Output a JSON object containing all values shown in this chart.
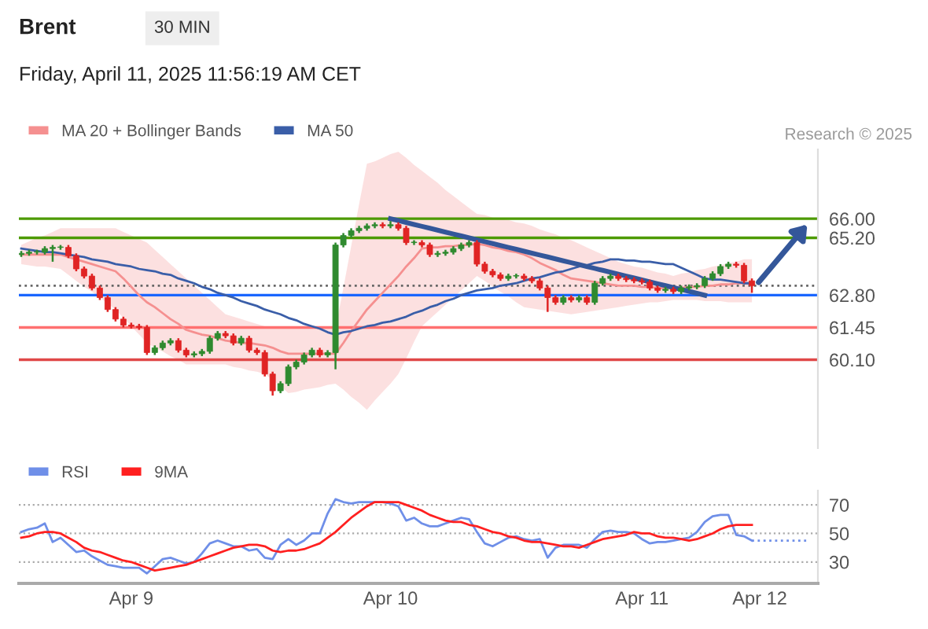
{
  "chart_data": [
    {
      "type": "candlestick",
      "title": "Brent",
      "subtitle": "Friday, April 11, 2025 11:56:19 AM CET",
      "annotations": [
        "30 MIN",
        "Research © 2025"
      ],
      "categories": [
        null,
        null,
        null,
        null,
        null,
        null,
        null,
        null,
        null,
        null,
        null,
        null,
        null,
        null,
        null,
        null,
        null,
        null,
        null,
        null,
        null,
        null,
        null,
        null,
        null,
        null,
        null,
        null,
        null,
        null,
        null,
        null,
        null,
        null,
        null,
        null,
        null,
        null,
        null,
        null,
        null,
        null,
        null,
        null,
        null,
        null,
        null,
        null,
        null,
        null,
        null,
        null,
        null,
        null,
        null,
        null,
        null,
        null,
        null,
        null,
        null,
        null,
        null,
        null,
        null,
        null,
        null,
        null,
        null,
        null,
        null,
        null,
        null,
        null,
        null,
        null,
        null,
        null,
        null,
        null,
        null,
        null,
        null,
        null,
        null,
        null,
        null,
        null,
        null,
        null,
        null,
        null,
        null,
        null,
        null,
        null,
        null,
        null,
        null,
        null,
        null
      ],
      "ohlc": [
        [
          64.5,
          64.65,
          64.4,
          64.55
        ],
        [
          64.55,
          64.7,
          64.45,
          64.6
        ],
        [
          64.6,
          64.7,
          64.5,
          64.6
        ],
        [
          64.6,
          64.85,
          64.5,
          64.75
        ],
        [
          64.75,
          64.9,
          64.2,
          64.8
        ],
        [
          64.8,
          64.9,
          64.7,
          64.8
        ],
        [
          64.8,
          64.9,
          64.35,
          64.45
        ],
        [
          64.45,
          64.55,
          63.8,
          63.9
        ],
        [
          63.9,
          64.0,
          63.5,
          63.6
        ],
        [
          63.6,
          63.7,
          63.0,
          63.1
        ],
        [
          63.1,
          63.2,
          62.6,
          62.7
        ],
        [
          62.7,
          62.8,
          62.1,
          62.2
        ],
        [
          62.2,
          62.3,
          61.7,
          61.8
        ],
        [
          61.8,
          61.9,
          61.45,
          61.55
        ],
        [
          61.55,
          61.65,
          61.4,
          61.5
        ],
        [
          61.5,
          61.6,
          61.35,
          61.45
        ],
        [
          61.45,
          61.55,
          60.3,
          60.4
        ],
        [
          60.4,
          60.7,
          60.3,
          60.6
        ],
        [
          60.6,
          60.9,
          60.5,
          60.8
        ],
        [
          60.8,
          61.0,
          60.7,
          60.9
        ],
        [
          60.9,
          61.0,
          60.4,
          60.5
        ],
        [
          60.5,
          60.6,
          60.2,
          60.3
        ],
        [
          60.3,
          60.45,
          60.2,
          60.35
        ],
        [
          60.35,
          60.55,
          60.25,
          60.45
        ],
        [
          60.45,
          61.1,
          60.35,
          61.0
        ],
        [
          61.0,
          61.3,
          60.9,
          61.2
        ],
        [
          61.2,
          61.3,
          61.0,
          61.1
        ],
        [
          61.1,
          61.2,
          60.7,
          60.8
        ],
        [
          60.8,
          61.1,
          60.7,
          61.0
        ],
        [
          61.0,
          61.1,
          60.4,
          60.5
        ],
        [
          60.5,
          60.6,
          60.3,
          60.4
        ],
        [
          60.4,
          60.5,
          59.4,
          59.5
        ],
        [
          59.5,
          59.6,
          58.6,
          58.8
        ],
        [
          58.8,
          59.2,
          58.7,
          59.1
        ],
        [
          59.1,
          59.9,
          59.0,
          59.8
        ],
        [
          59.8,
          60.1,
          59.7,
          60.0
        ],
        [
          60.0,
          60.4,
          59.9,
          60.3
        ],
        [
          60.3,
          60.6,
          60.2,
          60.5
        ],
        [
          60.5,
          60.6,
          60.2,
          60.3
        ],
        [
          60.3,
          60.5,
          60.2,
          60.4
        ],
        [
          60.4,
          65.0,
          59.7,
          64.9
        ],
        [
          64.9,
          65.4,
          64.8,
          65.3
        ],
        [
          65.3,
          65.6,
          65.2,
          65.5
        ],
        [
          65.5,
          65.7,
          65.4,
          65.6
        ],
        [
          65.6,
          65.8,
          65.5,
          65.7
        ],
        [
          65.7,
          65.85,
          65.6,
          65.75
        ],
        [
          65.75,
          65.85,
          65.6,
          65.7
        ],
        [
          65.7,
          65.9,
          65.6,
          65.75
        ],
        [
          65.75,
          65.85,
          65.5,
          65.6
        ],
        [
          65.6,
          65.7,
          64.9,
          65.0
        ],
        [
          65.0,
          65.1,
          64.9,
          65.0
        ],
        [
          65.0,
          65.1,
          64.8,
          64.9
        ],
        [
          64.9,
          65.0,
          64.4,
          64.5
        ],
        [
          64.5,
          64.65,
          64.4,
          64.55
        ],
        [
          64.55,
          64.7,
          64.45,
          64.6
        ],
        [
          64.6,
          64.85,
          64.5,
          64.75
        ],
        [
          64.75,
          65.0,
          64.65,
          64.9
        ],
        [
          64.9,
          65.1,
          64.8,
          65.0
        ],
        [
          65.0,
          65.1,
          64.0,
          64.1
        ],
        [
          64.1,
          64.2,
          63.7,
          63.8
        ],
        [
          63.8,
          63.9,
          63.55,
          63.65
        ],
        [
          63.65,
          63.75,
          63.4,
          63.5
        ],
        [
          63.5,
          63.7,
          63.4,
          63.6
        ],
        [
          63.6,
          63.7,
          63.5,
          63.6
        ],
        [
          63.6,
          63.7,
          63.4,
          63.5
        ],
        [
          63.5,
          63.6,
          63.3,
          63.4
        ],
        [
          63.4,
          63.5,
          63.0,
          63.1
        ],
        [
          63.1,
          63.2,
          62.1,
          62.7
        ],
        [
          62.7,
          62.8,
          62.4,
          62.5
        ],
        [
          62.5,
          62.8,
          62.4,
          62.7
        ],
        [
          62.7,
          62.8,
          62.5,
          62.6
        ],
        [
          62.6,
          62.8,
          62.5,
          62.7
        ],
        [
          62.7,
          62.8,
          62.4,
          62.5
        ],
        [
          62.5,
          63.4,
          62.4,
          63.3
        ],
        [
          63.3,
          63.6,
          63.2,
          63.5
        ],
        [
          63.5,
          63.7,
          63.4,
          63.6
        ],
        [
          63.6,
          63.7,
          63.4,
          63.5
        ],
        [
          63.5,
          63.6,
          63.35,
          63.45
        ],
        [
          63.45,
          63.55,
          63.3,
          63.4
        ],
        [
          63.4,
          63.5,
          63.25,
          63.35
        ],
        [
          63.35,
          63.45,
          63.0,
          63.1
        ],
        [
          63.1,
          63.2,
          62.9,
          63.0
        ],
        [
          63.0,
          63.15,
          62.9,
          63.05
        ],
        [
          63.05,
          63.15,
          62.85,
          62.95
        ],
        [
          62.95,
          63.2,
          62.85,
          63.1
        ],
        [
          63.1,
          63.25,
          63.0,
          63.15
        ],
        [
          63.15,
          63.3,
          63.05,
          63.2
        ],
        [
          63.2,
          63.6,
          63.1,
          63.5
        ],
        [
          63.5,
          63.8,
          63.4,
          63.7
        ],
        [
          63.7,
          64.1,
          63.6,
          64.0
        ],
        [
          64.0,
          64.2,
          63.9,
          64.1
        ],
        [
          64.1,
          64.2,
          63.95,
          64.05
        ],
        [
          64.05,
          64.15,
          63.3,
          63.4
        ],
        [
          63.4,
          63.5,
          62.9,
          63.2
        ],
        null,
        null,
        null,
        null,
        null,
        null,
        null
      ],
      "colors": [
        "#2f8a2f",
        "#2f8a2f",
        "#2f8a2f",
        "#2f8a2f",
        "#2f8a2f",
        "#2f8a2f",
        "#e02424",
        "#e02424",
        "#e02424",
        "#e02424",
        "#e02424",
        "#e02424",
        "#e02424",
        "#e02424",
        "#e02424",
        "#e02424",
        "#e02424",
        "#2f8a2f",
        "#2f8a2f",
        "#2f8a2f",
        "#e02424",
        "#e02424",
        "#2f8a2f",
        "#2f8a2f",
        "#2f8a2f",
        "#2f8a2f",
        "#e02424",
        "#e02424",
        "#2f8a2f",
        "#e02424",
        "#e02424",
        "#e02424",
        "#e02424",
        "#2f8a2f",
        "#2f8a2f",
        "#2f8a2f",
        "#2f8a2f",
        "#2f8a2f",
        "#e02424",
        "#2f8a2f",
        "#2f8a2f",
        "#2f8a2f",
        "#2f8a2f",
        "#2f8a2f",
        "#2f8a2f",
        "#2f8a2f",
        "#e02424",
        "#2f8a2f",
        "#e02424",
        "#e02424",
        "#2f8a2f",
        "#e02424",
        "#e02424",
        "#2f8a2f",
        "#2f8a2f",
        "#2f8a2f",
        "#2f8a2f",
        "#2f8a2f",
        "#e02424",
        "#e02424",
        "#e02424",
        "#e02424",
        "#2f8a2f",
        "#2f8a2f",
        "#e02424",
        "#e02424",
        "#e02424",
        "#e02424",
        "#e02424",
        "#2f8a2f",
        "#e02424",
        "#2f8a2f",
        "#e02424",
        "#2f8a2f",
        "#2f8a2f",
        "#2f8a2f",
        "#e02424",
        "#e02424",
        "#e02424",
        "#e02424",
        "#e02424",
        "#e02424",
        "#2f8a2f",
        "#e02424",
        "#2f8a2f",
        "#2f8a2f",
        "#2f8a2f",
        "#2f8a2f",
        "#2f8a2f",
        "#2f8a2f",
        "#2f8a2f",
        "#e02424",
        "#e02424",
        "#e02424",
        null,
        null,
        null,
        null,
        null,
        null,
        null
      ],
      "series": [
        {
          "name": "MA 20 + Bollinger Bands",
          "type": "line",
          "color": "#f59090",
          "values": [
            64.5,
            64.5,
            64.5,
            64.5,
            64.5,
            64.5,
            64.4,
            64.3,
            64.2,
            64.1,
            64.0,
            63.9,
            63.8,
            63.5,
            63.15,
            62.8,
            62.5,
            62.3,
            62.05,
            61.8,
            61.6,
            61.35,
            61.25,
            61.15,
            61.1,
            61.0,
            60.9,
            60.85,
            60.8,
            60.8,
            60.75,
            60.7,
            60.6,
            60.45,
            60.35,
            60.35,
            60.35,
            60.35,
            60.35,
            60.35,
            60.35,
            60.8,
            61.3,
            61.75,
            62.2,
            62.55,
            62.9,
            63.25,
            63.6,
            64.0,
            64.35,
            64.75,
            64.8,
            64.8,
            64.85,
            64.85,
            64.9,
            64.9,
            64.95,
            64.9,
            64.8,
            64.75,
            64.65,
            64.6,
            64.5,
            64.35,
            64.15,
            64.0,
            63.85,
            63.65,
            63.5,
            63.45,
            63.4,
            63.35,
            63.3,
            63.25,
            63.2,
            63.2,
            63.2,
            63.15,
            63.15,
            63.1,
            63.1,
            63.1,
            63.1,
            63.15,
            63.15,
            63.2,
            63.2,
            63.25,
            63.25,
            63.3,
            63.3,
            63.3,
            null,
            null,
            null,
            null,
            null,
            null,
            null
          ],
          "lower": [
            64.1,
            64.05,
            64.0,
            64.0,
            63.95,
            63.9,
            63.65,
            63.4,
            63.15,
            62.95,
            62.7,
            62.45,
            62.2,
            61.85,
            61.5,
            61.15,
            60.8,
            60.6,
            60.45,
            60.25,
            60.1,
            59.9,
            59.9,
            59.9,
            59.9,
            59.9,
            59.9,
            59.8,
            59.75,
            59.65,
            59.6,
            59.5,
            59.25,
            59.0,
            58.7,
            58.75,
            58.85,
            58.9,
            58.95,
            59.05,
            59.1,
            58.85,
            58.55,
            58.3,
            58.0,
            58.4,
            58.75,
            59.1,
            59.5,
            60.15,
            60.85,
            61.5,
            61.8,
            62.1,
            62.4,
            62.7,
            63.0,
            63.3,
            63.6,
            63.4,
            63.15,
            62.95,
            62.75,
            62.5,
            62.3,
            62.25,
            62.2,
            62.15,
            62.1,
            62.05,
            62.0,
            62.05,
            62.1,
            62.15,
            62.2,
            62.25,
            62.3,
            62.35,
            62.4,
            62.45,
            62.5,
            62.5,
            62.55,
            62.6,
            62.6,
            62.6,
            62.6,
            62.55,
            62.55,
            62.55,
            62.5,
            62.5,
            62.5,
            62.5,
            null,
            null,
            null,
            null,
            null,
            null,
            null
          ],
          "upper": [
            64.9,
            65.05,
            65.2,
            65.3,
            65.45,
            65.6,
            65.6,
            65.6,
            65.6,
            65.6,
            65.6,
            65.6,
            65.6,
            65.45,
            65.3,
            65.15,
            65.0,
            64.7,
            64.4,
            64.1,
            63.8,
            63.5,
            63.2,
            62.9,
            62.6,
            62.3,
            62.0,
            61.9,
            61.8,
            61.7,
            61.6,
            61.5,
            61.5,
            61.5,
            61.5,
            61.5,
            61.5,
            61.45,
            61.45,
            61.4,
            61.4,
            63.1,
            64.85,
            66.6,
            68.3,
            68.4,
            68.55,
            68.7,
            68.8,
            68.55,
            68.25,
            68.0,
            67.75,
            67.5,
            67.2,
            66.95,
            66.7,
            66.45,
            66.2,
            66.15,
            66.05,
            66.0,
            65.95,
            65.85,
            65.8,
            65.7,
            65.55,
            65.45,
            65.35,
            65.2,
            65.1,
            64.95,
            64.8,
            64.65,
            64.5,
            64.35,
            64.2,
            64.1,
            64.0,
            63.95,
            63.85,
            63.75,
            63.7,
            63.6,
            63.7,
            63.75,
            63.85,
            63.9,
            64.0,
            64.05,
            64.15,
            64.2,
            64.3,
            64.3,
            null,
            null,
            null,
            null,
            null,
            null,
            null
          ]
        },
        {
          "name": "MA 50",
          "type": "line",
          "color": "#3a5ea8",
          "values": [
            64.75,
            64.7,
            64.65,
            64.6,
            64.6,
            64.55,
            64.5,
            64.45,
            64.4,
            64.3,
            64.25,
            64.2,
            64.1,
            64.05,
            64.0,
            63.9,
            63.85,
            63.8,
            63.7,
            63.65,
            63.5,
            63.4,
            63.3,
            63.15,
            63.05,
            62.9,
            62.8,
            62.7,
            62.55,
            62.45,
            62.35,
            62.2,
            62.1,
            62.0,
            61.85,
            61.75,
            61.6,
            61.5,
            61.4,
            61.25,
            61.15,
            61.25,
            61.3,
            61.4,
            61.5,
            61.55,
            61.65,
            61.7,
            61.8,
            61.9,
            62.05,
            62.15,
            62.3,
            62.4,
            62.55,
            62.65,
            62.8,
            62.9,
            63.0,
            63.05,
            63.1,
            63.2,
            63.25,
            63.3,
            63.4,
            63.5,
            63.55,
            63.65,
            63.75,
            63.8,
            63.9,
            64.0,
            64.05,
            64.15,
            64.2,
            64.3,
            64.3,
            64.25,
            64.25,
            64.2,
            64.2,
            64.15,
            64.1,
            64.1,
            63.95,
            63.8,
            63.65,
            63.5,
            63.45,
            63.45,
            63.4,
            63.35,
            63.3,
            63.3,
            null,
            null,
            null,
            null,
            null,
            null,
            null
          ]
        },
        {
          "type": "line",
          "color": "#34579a",
          "values": [
            null,
            null,
            null,
            null,
            null,
            null,
            null,
            null,
            null,
            null,
            null,
            null,
            null,
            null,
            null,
            null,
            null,
            null,
            null,
            null,
            null,
            null,
            null,
            null,
            null,
            null,
            null,
            null,
            null,
            null,
            null,
            null,
            null,
            null,
            null,
            null,
            null,
            null,
            null,
            null,
            null,
            null,
            null,
            null,
            null,
            null,
            null,
            66.0,
            65.92,
            65.84,
            65.76,
            65.68,
            65.6,
            65.52,
            65.44,
            65.36,
            65.28,
            65.2,
            65.12,
            65.04,
            64.96,
            64.88,
            64.8,
            64.72,
            64.64,
            64.56,
            64.48,
            64.4,
            64.32,
            64.24,
            64.16,
            64.08,
            64.0,
            63.92,
            63.84,
            63.76,
            63.68,
            63.6,
            63.52,
            63.44,
            63.36,
            63.28,
            63.2,
            63.12,
            63.04,
            62.96,
            62.88,
            62.8,
            null,
            null,
            null,
            null,
            null,
            null,
            null,
            null,
            null,
            null,
            null,
            null,
            null
          ]
        }
      ],
      "ref_lines": [
        {
          "axis": "y",
          "value": 66.0,
          "color": "#4c9a00"
        },
        {
          "axis": "y",
          "value": 65.2,
          "color": "#4c9a00"
        },
        {
          "axis": "y",
          "value": 63.2,
          "color": "#666666",
          "line_style": "dotted"
        },
        {
          "axis": "y",
          "value": 62.8,
          "color": "#1a66ff"
        },
        {
          "axis": "y",
          "value": 61.45,
          "color": "#ff7070"
        },
        {
          "axis": "y",
          "value": 60.1,
          "color": "#e04848"
        }
      ],
      "yticks": [
        {
          "value": 66.0,
          "label": "66.00"
        },
        {
          "value": 65.2,
          "label": "65.20"
        },
        {
          "value": 62.8,
          "label": "62.80"
        },
        61.45,
        {
          "value": 60.1,
          "label": "60.10"
        }
      ],
      "ylim": [
        56.4,
        68.9
      ],
      "tick_labels": "y",
      "legend": "top left",
      "grid": false
    },
    {
      "type": "line",
      "categories": [
        null,
        null,
        null,
        null,
        null,
        null,
        null,
        null,
        null,
        null,
        null,
        null,
        null,
        null,
        "Apr 9",
        null,
        null,
        null,
        null,
        null,
        null,
        null,
        null,
        null,
        null,
        null,
        null,
        null,
        null,
        null,
        null,
        null,
        null,
        null,
        null,
        null,
        null,
        null,
        null,
        null,
        null,
        null,
        null,
        null,
        null,
        null,
        null,
        "Apr 10",
        null,
        null,
        null,
        null,
        null,
        null,
        null,
        null,
        null,
        null,
        null,
        null,
        null,
        null,
        null,
        null,
        null,
        null,
        null,
        null,
        null,
        null,
        null,
        null,
        null,
        null,
        null,
        null,
        null,
        null,
        null,
        "Apr 11",
        null,
        null,
        null,
        null,
        null,
        null,
        null,
        null,
        null,
        null,
        null,
        null,
        null,
        null,
        "Apr 12",
        null,
        null,
        null,
        null,
        null,
        null
      ],
      "series": [
        {
          "name": "RSI",
          "color": "#6f8fe8",
          "values": [
            51,
            53,
            54,
            57,
            44,
            47,
            42,
            37,
            38,
            34,
            31,
            28,
            27,
            26,
            26,
            26,
            22,
            27,
            32,
            33,
            31,
            29,
            30,
            36,
            43,
            45,
            43,
            41,
            41,
            38,
            39,
            33,
            32,
            42,
            46,
            42,
            45,
            50,
            50,
            64,
            74,
            72,
            71,
            72,
            72,
            72,
            72,
            71,
            69,
            59,
            61,
            57,
            55,
            55,
            57,
            59,
            61,
            60,
            51,
            43,
            41,
            44,
            47,
            48,
            46,
            45,
            46,
            33,
            40,
            42,
            42,
            42,
            40,
            46,
            51,
            52,
            51,
            51,
            50,
            46,
            43,
            44,
            44,
            45,
            46,
            47,
            51,
            58,
            62,
            63,
            63,
            49,
            48,
            45,
            null,
            null,
            null,
            null,
            null,
            null,
            null
          ]
        },
        {
          "color": "#6f8fe8",
          "line_style": "dotted",
          "values": [
            null,
            null,
            null,
            null,
            null,
            null,
            null,
            null,
            null,
            null,
            null,
            null,
            null,
            null,
            null,
            null,
            null,
            null,
            null,
            null,
            null,
            null,
            null,
            null,
            null,
            null,
            null,
            null,
            null,
            null,
            null,
            null,
            null,
            null,
            null,
            null,
            null,
            null,
            null,
            null,
            null,
            null,
            null,
            null,
            null,
            null,
            null,
            null,
            null,
            null,
            null,
            null,
            null,
            null,
            null,
            null,
            null,
            null,
            null,
            null,
            null,
            null,
            null,
            null,
            null,
            null,
            null,
            null,
            null,
            null,
            null,
            null,
            null,
            null,
            null,
            null,
            null,
            null,
            null,
            null,
            null,
            null,
            null,
            null,
            null,
            null,
            null,
            null,
            null,
            null,
            null,
            null,
            null,
            45,
            45,
            45,
            45,
            45,
            45,
            45,
            45
          ]
        },
        {
          "name": "9MA",
          "color": "#ff2020",
          "values": [
            47,
            48,
            50,
            51,
            51,
            50,
            47,
            44,
            40,
            38,
            37,
            35,
            33,
            31,
            30,
            28,
            26,
            24,
            25,
            26,
            27,
            28,
            30,
            32,
            34,
            36,
            38,
            40,
            41,
            42,
            42,
            41,
            38,
            37,
            38,
            38,
            39,
            41,
            43,
            47,
            51,
            56,
            61,
            65,
            69,
            72,
            72,
            72,
            72,
            70,
            68,
            66,
            63,
            61,
            59,
            58,
            58,
            56,
            55,
            53,
            51,
            50,
            48,
            47,
            45,
            44,
            44,
            43,
            42,
            41,
            41,
            40,
            42,
            44,
            46,
            47,
            48,
            49,
            51,
            50,
            50,
            48,
            47,
            47,
            46,
            45,
            46,
            48,
            50,
            53,
            55,
            56,
            56,
            56,
            null,
            null,
            null,
            null,
            null,
            null,
            null
          ]
        }
      ],
      "ylim": [
        15,
        80
      ],
      "yticks": [
        30,
        50,
        70
      ],
      "grid": "y",
      "legend": "top left"
    }
  ]
}
